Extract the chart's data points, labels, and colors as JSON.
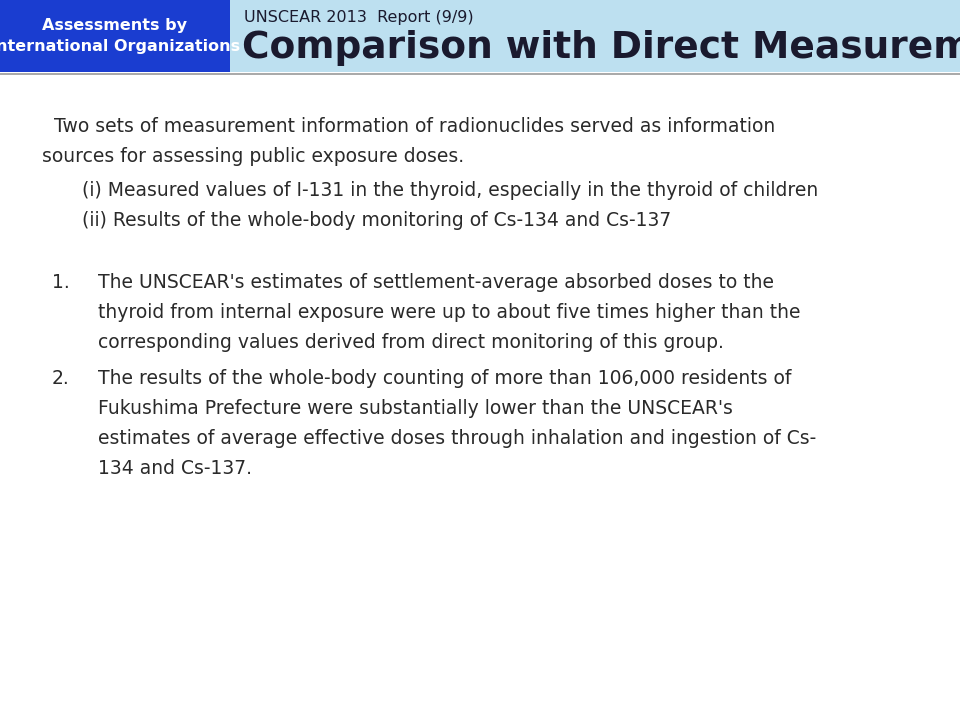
{
  "header_bg": "#bde0f0",
  "blue_box_color": "#1a3dd0",
  "blue_box_text": "Assessments by\nInternational Organizations",
  "blue_box_text_color": "#ffffff",
  "subtitle_text": "UNSCEAR 2013  Report (9/9)",
  "title_text": "Comparison with Direct Measurements",
  "title_color": "#1a1a2e",
  "subtitle_color": "#1a1a2e",
  "body_bg": "#ffffff",
  "body_text_color": "#2a2a2a",
  "separator_color": "#999999",
  "intro_line1": "  Two sets of measurement information of radionuclides served as information",
  "intro_line2": "sources for assessing public exposure doses.",
  "bullet_i": "     (i) Measured values of I-131 in the thyroid, especially in the thyroid of children",
  "bullet_ii": "     (ii) Results of the whole-body monitoring of Cs-134 and Cs-137",
  "item1_line1": "The UNSCEAR's estimates of settlement-average absorbed doses to the",
  "item1_line2": "thyroid from internal exposure were up to about five times higher than the",
  "item1_line3": "corresponding values derived from direct monitoring of this group.",
  "item2_line1": "The results of the whole-body counting of more than 106,000 residents of",
  "item2_line2": "Fukushima Prefecture were substantially lower than the UNSCEAR's",
  "item2_line3": "estimates of average effective doses through inhalation and ingestion of Cs-",
  "item2_line4": "134 and Cs-137.",
  "fig_width": 9.6,
  "fig_height": 7.2,
  "dpi": 100
}
